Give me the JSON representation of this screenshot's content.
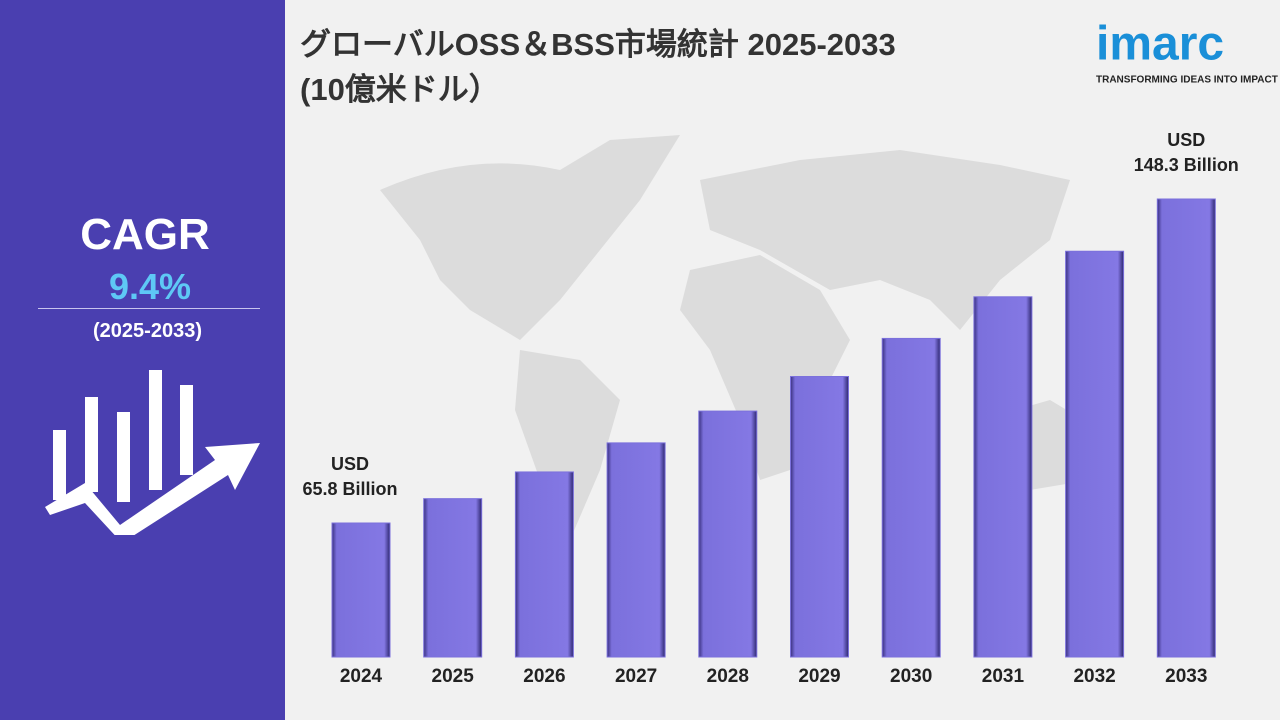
{
  "sidebar": {
    "cagr_label": "CAGR",
    "cagr_value": "9.4%",
    "period": "(2025-2033)"
  },
  "logo": {
    "name": "imarc",
    "tagline": "TRANSFORMING IDEAS INTO IMPACT"
  },
  "chart_data": {
    "type": "bar",
    "title": "グローバルOSS＆BSS市場統計 2025-2033",
    "subtitle": "(10億米ドル）",
    "categories": [
      "2024",
      "2025",
      "2026",
      "2027",
      "2028",
      "2029",
      "2030",
      "2031",
      "2032",
      "2033"
    ],
    "values": [
      65.8,
      72.0,
      78.8,
      86.2,
      94.3,
      103.1,
      112.8,
      123.4,
      135.0,
      148.3
    ],
    "value_labels": [
      [
        "USD",
        "65.8 Billion"
      ],
      null,
      null,
      null,
      null,
      null,
      null,
      null,
      null,
      [
        "USD",
        "148.3 Billion"
      ]
    ],
    "color": "#7b70dc"
  }
}
